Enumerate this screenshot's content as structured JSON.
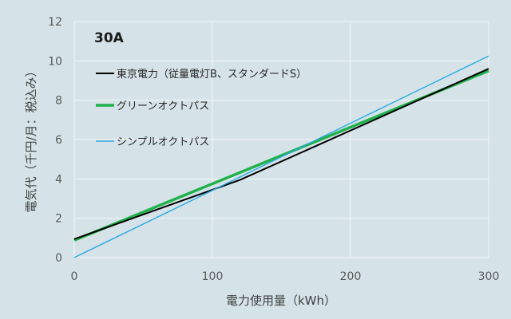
{
  "chart_data": {
    "type": "line",
    "title": "30A",
    "xlabel": "電力使用量（kWh）",
    "ylabel": "電気代（千円/月：税込み）",
    "xlim": [
      0,
      300
    ],
    "ylim": [
      0,
      12
    ],
    "xticks": [
      0,
      100,
      200,
      300
    ],
    "yticks": [
      0,
      2,
      4,
      6,
      8,
      10,
      12
    ],
    "grid": true,
    "legend_position": "top-left",
    "series": [
      {
        "name": "東京電力（従量電灯B、スタンダードS）",
        "color": "#000000",
        "x": [
          0,
          120,
          300
        ],
        "y": [
          0.94,
          3.95,
          9.6
        ]
      },
      {
        "name": "グリーンオクトパス",
        "color": "#21b14b",
        "x": [
          0,
          300
        ],
        "y": [
          0.88,
          9.5
        ]
      },
      {
        "name": "シンプルオクトパス",
        "color": "#29a9e1",
        "x": [
          0,
          300
        ],
        "y": [
          0.0,
          10.25
        ]
      }
    ]
  }
}
